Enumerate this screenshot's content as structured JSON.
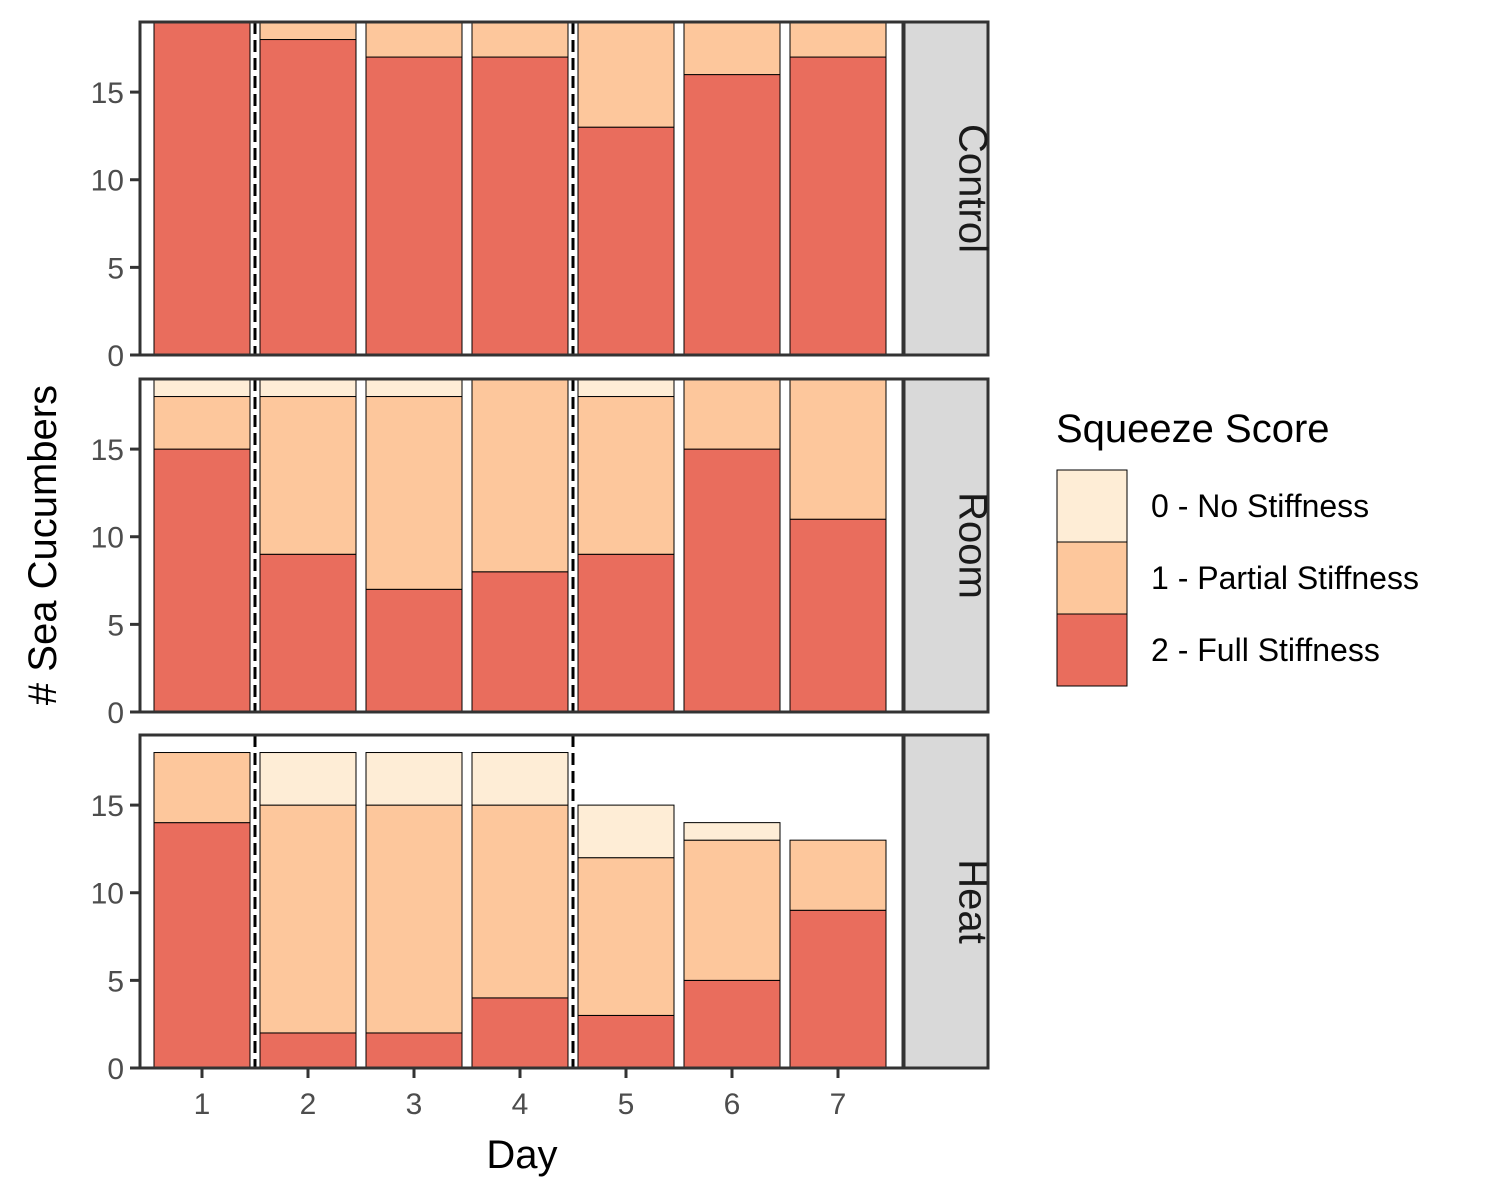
{
  "chart_data": {
    "type": "bar",
    "stacked": true,
    "faceted": true,
    "xlabel": "Day",
    "ylabel": "# Sea Cucumbers",
    "categories": [
      "1",
      "2",
      "3",
      "4",
      "5",
      "6",
      "7"
    ],
    "y_ticks": [
      "0",
      "5",
      "10",
      "15"
    ],
    "ylim": [
      0,
      19
    ],
    "legend": {
      "title": "Squeeze Score",
      "placement": "right",
      "entries": [
        {
          "label": "0 - No Stiffness",
          "color": "#FEEDD6"
        },
        {
          "label": "1 - Partial Stiffness",
          "color": "#FDC79C"
        },
        {
          "label": "2 - Full Stiffness",
          "color": "#E96D5D"
        }
      ]
    },
    "reference_lines": {
      "style": "dashed",
      "x_between": [
        [
          1,
          2
        ],
        [
          4,
          5
        ]
      ]
    },
    "panels": [
      {
        "label": "Control",
        "series": [
          {
            "values": [
              19,
              18,
              17,
              17,
              13,
              16,
              17
            ]
          },
          {
            "values": [
              0,
              1,
              2,
              2,
              6,
              3,
              2
            ]
          },
          {
            "values": [
              0,
              0,
              0,
              0,
              0,
              0,
              0
            ]
          }
        ]
      },
      {
        "label": "Room",
        "series": [
          {
            "values": [
              15,
              9,
              7,
              8,
              9,
              15,
              11
            ]
          },
          {
            "values": [
              3,
              9,
              11,
              11,
              9,
              4,
              8
            ]
          },
          {
            "values": [
              1,
              1,
              1,
              0,
              1,
              0,
              0
            ]
          }
        ]
      },
      {
        "label": "Heat",
        "series": [
          {
            "values": [
              14,
              2,
              2,
              4,
              3,
              5,
              9
            ]
          },
          {
            "values": [
              4,
              13,
              13,
              11,
              9,
              8,
              4
            ]
          },
          {
            "values": [
              0,
              3,
              3,
              3,
              3,
              1,
              0
            ]
          }
        ]
      }
    ]
  }
}
